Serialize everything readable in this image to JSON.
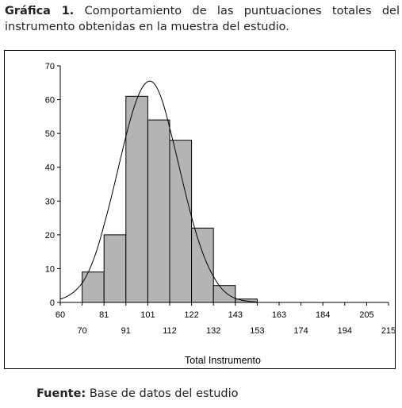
{
  "caption": {
    "label": "Gráfica 1.",
    "text": "Comportamiento de las puntuaciones totales del instrumento obtenidas en la muestra del estudio."
  },
  "source": {
    "label": "Fuente:",
    "text": "Base de datos del estudio"
  },
  "chart_data": {
    "type": "bar",
    "title": "",
    "xlabel": "Total Instrumento",
    "ylabel": "",
    "ylim": [
      0,
      70
    ],
    "yticks": [
      0,
      10,
      20,
      30,
      40,
      50,
      60,
      70
    ],
    "xticks_top": [
      "60",
      "81",
      "101",
      "122",
      "143",
      "163",
      "184",
      "205"
    ],
    "xticks_bottom": [
      "70",
      "91",
      "112",
      "132",
      "153",
      "174",
      "194",
      "215"
    ],
    "bins": [
      {
        "from": 60,
        "to": 70,
        "value": 0
      },
      {
        "from": 70,
        "to": 81,
        "value": 9
      },
      {
        "from": 81,
        "to": 91,
        "value": 20
      },
      {
        "from": 91,
        "to": 101,
        "value": 61
      },
      {
        "from": 101,
        "to": 112,
        "value": 54
      },
      {
        "from": 112,
        "to": 122,
        "value": 48
      },
      {
        "from": 122,
        "to": 132,
        "value": 22
      },
      {
        "from": 132,
        "to": 143,
        "value": 5
      },
      {
        "from": 143,
        "to": 153,
        "value": 1
      },
      {
        "from": 153,
        "to": 163,
        "value": 0
      },
      {
        "from": 163,
        "to": 174,
        "value": 0
      },
      {
        "from": 174,
        "to": 184,
        "value": 0
      },
      {
        "from": 184,
        "to": 194,
        "value": 0
      },
      {
        "from": 194,
        "to": 205,
        "value": 0
      },
      {
        "from": 205,
        "to": 215,
        "value": 0
      }
    ],
    "normal_curve": {
      "mean": 102,
      "sd": 14.5,
      "peak": 65.5
    },
    "bar_color": "#b4b4b4",
    "grid": false,
    "legend": "none"
  }
}
